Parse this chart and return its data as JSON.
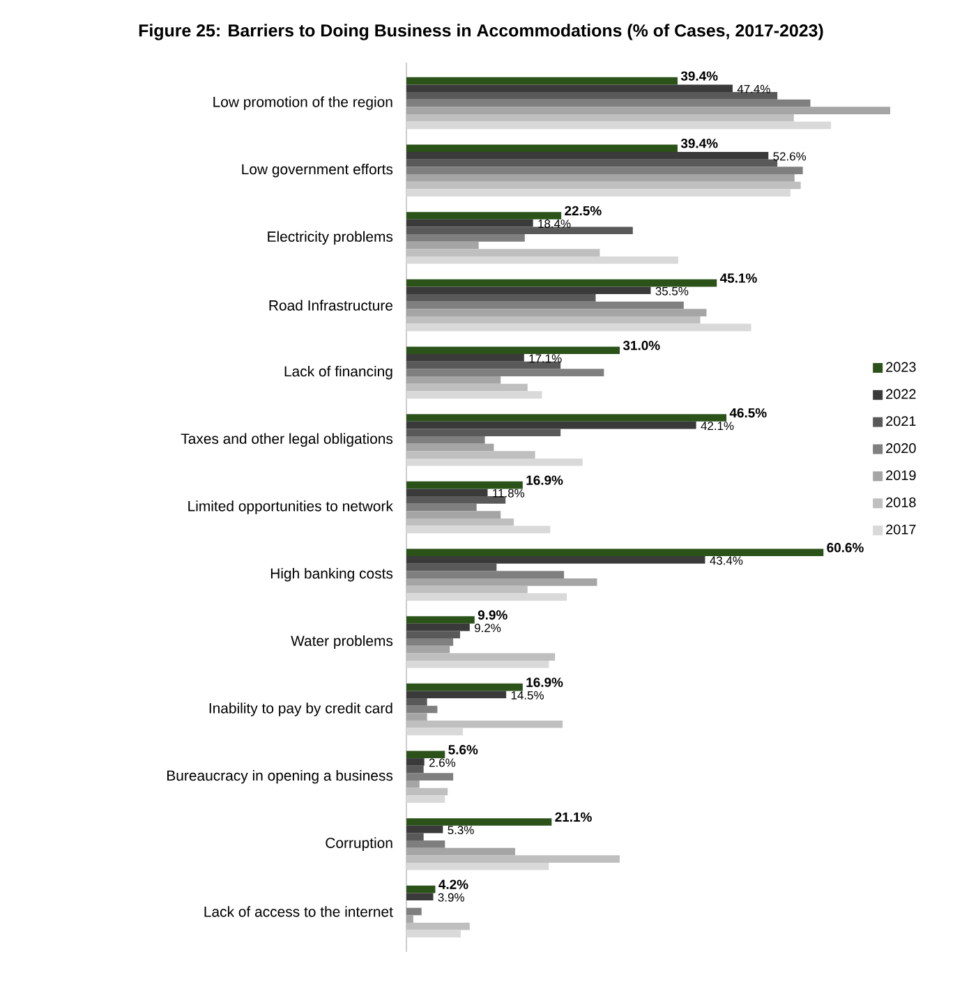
{
  "chart_data": {
    "type": "bar",
    "orientation": "horizontal",
    "title": "Figure 25: Barriers to Doing Business in Accommodations (% of Cases, 2017-2023)",
    "categories": [
      "Low promotion of the region",
      "Low government efforts",
      "Electricity problems",
      "Road Infrastructure",
      "Lack of financing",
      "Taxes and other legal obligations",
      "Limited opportunities to network",
      "High banking costs",
      "Water problems",
      "Inability to pay by credit card",
      "Bureaucracy in opening a business",
      "Corruption",
      "Lack of access to the internet"
    ],
    "series": [
      {
        "name": "2023",
        "color": "#2a5219",
        "values": [
          39.4,
          39.4,
          22.5,
          45.1,
          31.0,
          46.5,
          16.9,
          60.6,
          9.9,
          16.9,
          5.6,
          21.1,
          4.2
        ],
        "value_labels": [
          "39.4%",
          "39.4%",
          "22.5%",
          "45.1%",
          "31.0%",
          "46.5%",
          "16.9%",
          "60.6%",
          "9.9%",
          "16.9%",
          "5.6%",
          "21.1%",
          "4.2%"
        ]
      },
      {
        "name": "2022",
        "color": "#3a3a3a",
        "values": [
          47.4,
          52.6,
          18.4,
          35.5,
          17.1,
          42.1,
          11.8,
          43.4,
          9.2,
          14.5,
          2.6,
          5.3,
          3.9
        ],
        "value_labels": [
          "47.4%",
          "52.6%",
          "18.4%",
          "35.5%",
          "17.1%",
          "42.1%",
          "11.8%",
          "43.4%",
          "9.2%",
          "14.5%",
          "2.6%",
          "5.3%",
          "3.9%"
        ]
      },
      {
        "name": "2021",
        "color": "#595959",
        "values": [
          53.9,
          53.9,
          32.9,
          27.5,
          22.4,
          22.4,
          14.4,
          13.1,
          7.8,
          3.0,
          2.5,
          2.5,
          0
        ]
      },
      {
        "name": "2020",
        "color": "#7f7f7f",
        "values": [
          58.7,
          57.6,
          17.2,
          40.3,
          28.7,
          11.4,
          10.2,
          22.9,
          6.8,
          4.5,
          6.8,
          5.6,
          2.2
        ]
      },
      {
        "name": "2019",
        "color": "#a5a5a5",
        "values": [
          70.3,
          56.4,
          10.5,
          43.6,
          13.7,
          12.7,
          13.7,
          27.7,
          6.3,
          3.0,
          1.9,
          15.8,
          1.0
        ]
      },
      {
        "name": "2018",
        "color": "#bfbfbf",
        "values": [
          56.3,
          57.3,
          28.1,
          42.7,
          17.6,
          18.7,
          15.6,
          17.6,
          21.6,
          22.7,
          6.0,
          31.0,
          9.2
        ]
      },
      {
        "name": "2017",
        "color": "#d9d9d9",
        "values": [
          61.7,
          55.8,
          39.5,
          50.1,
          19.7,
          25.6,
          20.9,
          23.3,
          20.7,
          8.2,
          5.6,
          20.7,
          7.9
        ]
      }
    ],
    "tick_labels": "y",
    "legend": "right"
  }
}
